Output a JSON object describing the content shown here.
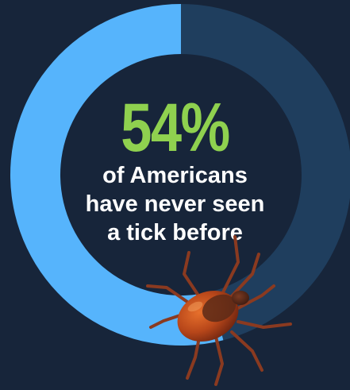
{
  "chart_data": {
    "type": "pie",
    "title": "",
    "categories": [
      "of Americans have never seen a tick before",
      ""
    ],
    "values": [
      54,
      46
    ],
    "colors": [
      "#56b4fc",
      "#1f3e5e"
    ]
  },
  "statistic": {
    "value": "54%",
    "caption_lines": [
      "of Americans",
      "have never seen",
      "a tick before"
    ]
  },
  "colors": {
    "background": "#17253a",
    "highlight": "#56b4fc",
    "remainder": "#1f3e5e",
    "stat_value": "#8fd14f",
    "caption": "#ffffff",
    "tick_body": "#b8471a"
  },
  "icons": {
    "illustration": "tick-icon"
  }
}
